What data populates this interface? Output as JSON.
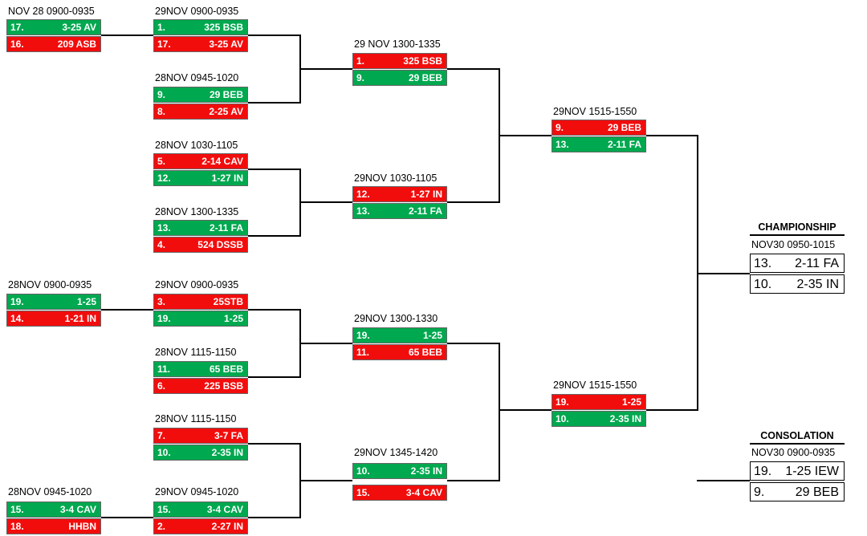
{
  "colors": {
    "win": "#00a84f",
    "lose": "#f20d0d"
  },
  "round1": [
    {
      "label": "NOV 28 0900-0935",
      "teams": [
        {
          "seed": "17.",
          "name": "3-25 AV",
          "status": "win"
        },
        {
          "seed": "16.",
          "name": "209 ASB",
          "status": "lose"
        }
      ]
    },
    {
      "label": "28NOV 0900-0935",
      "teams": [
        {
          "seed": "19.",
          "name": "1-25",
          "status": "win"
        },
        {
          "seed": "14.",
          "name": "1-21 IN",
          "status": "lose"
        }
      ]
    },
    {
      "label": "28NOV 0945-1020",
      "teams": [
        {
          "seed": "15.",
          "name": "3-4 CAV",
          "status": "win"
        },
        {
          "seed": "18.",
          "name": "HHBN",
          "status": "lose"
        }
      ]
    }
  ],
  "round2": [
    {
      "label": "29NOV 0900-0935",
      "teams": [
        {
          "seed": "1.",
          "name": "325 BSB",
          "status": "win"
        },
        {
          "seed": "17.",
          "name": "3-25 AV",
          "status": "lose"
        }
      ]
    },
    {
      "label": "28NOV 0945-1020",
      "teams": [
        {
          "seed": "9.",
          "name": "29 BEB",
          "status": "win"
        },
        {
          "seed": "8.",
          "name": "2-25 AV",
          "status": "lose"
        }
      ]
    },
    {
      "label": "28NOV 1030-1105",
      "teams": [
        {
          "seed": "5.",
          "name": "2-14 CAV",
          "status": "lose"
        },
        {
          "seed": "12.",
          "name": "1-27 IN",
          "status": "win"
        }
      ]
    },
    {
      "label": "28NOV 1300-1335",
      "teams": [
        {
          "seed": "13.",
          "name": "2-11 FA",
          "status": "win"
        },
        {
          "seed": "4.",
          "name": "524 DSSB",
          "status": "lose"
        }
      ]
    },
    {
      "label": "29NOV 0900-0935",
      "teams": [
        {
          "seed": "3.",
          "name": "25STB",
          "status": "lose"
        },
        {
          "seed": "19.",
          "name": "1-25",
          "status": "win"
        }
      ]
    },
    {
      "label": "28NOV 1115-1150",
      "teams": [
        {
          "seed": "11.",
          "name": "65 BEB",
          "status": "win"
        },
        {
          "seed": "6.",
          "name": "225 BSB",
          "status": "lose"
        }
      ]
    },
    {
      "label": "28NOV 1115-1150",
      "teams": [
        {
          "seed": "7.",
          "name": "3-7 FA",
          "status": "lose"
        },
        {
          "seed": "10.",
          "name": "2-35 IN",
          "status": "win"
        }
      ]
    },
    {
      "label": "29NOV 0945-1020",
      "teams": [
        {
          "seed": "15.",
          "name": "3-4 CAV",
          "status": "win"
        },
        {
          "seed": "2.",
          "name": "2-27 IN",
          "status": "lose"
        }
      ]
    }
  ],
  "round3": [
    {
      "label": "29 NOV 1300-1335",
      "teams": [
        {
          "seed": "1.",
          "name": "325 BSB",
          "status": "lose"
        },
        {
          "seed": "9.",
          "name": "29 BEB",
          "status": "win"
        }
      ]
    },
    {
      "label": "29NOV 1030-1105",
      "teams": [
        {
          "seed": "12.",
          "name": "1-27 IN",
          "status": "lose"
        },
        {
          "seed": "13.",
          "name": "2-11 FA",
          "status": "win"
        }
      ]
    },
    {
      "label": "29NOV 1300-1330",
      "teams": [
        {
          "seed": "19.",
          "name": "1-25",
          "status": "win"
        },
        {
          "seed": "11.",
          "name": "65 BEB",
          "status": "lose"
        }
      ]
    },
    {
      "label": "29NOV 1345-1420",
      "teams": [
        {
          "seed": "10.",
          "name": "2-35 IN",
          "status": "win"
        },
        {
          "seed": "15.",
          "name": "3-4 CAV",
          "status": "lose"
        }
      ]
    }
  ],
  "round4": [
    {
      "label": "29NOV 1515-1550",
      "teams": [
        {
          "seed": "9.",
          "name": "29 BEB",
          "status": "lose"
        },
        {
          "seed": "13.",
          "name": "2-11 FA",
          "status": "win"
        }
      ]
    },
    {
      "label": "29NOV 1515-1550",
      "teams": [
        {
          "seed": "19.",
          "name": "1-25",
          "status": "lose"
        },
        {
          "seed": "10.",
          "name": "2-35 IN",
          "status": "win"
        }
      ]
    }
  ],
  "championship": {
    "title": "CHAMPIONSHIP",
    "label": "NOV30 0950-1015",
    "teams": [
      {
        "seed": "13.",
        "name": "2-11 FA"
      },
      {
        "seed": "10.",
        "name": "2-35 IN"
      }
    ]
  },
  "consolation": {
    "title": "CONSOLATION",
    "label": "NOV30 0900-0935",
    "teams": [
      {
        "seed": "19.",
        "name": "1-25 IEW"
      },
      {
        "seed": "9.",
        "name": "29 BEB"
      }
    ]
  }
}
